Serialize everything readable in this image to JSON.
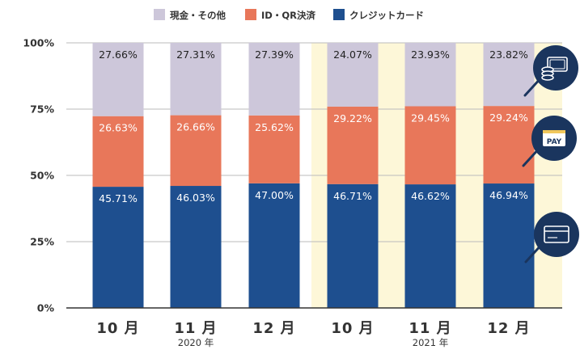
{
  "chart_data": {
    "type": "bar",
    "stacked": true,
    "percent_stacked": true,
    "categories": [
      "10 月",
      "11 月",
      "12 月",
      "10 月",
      "11 月",
      "12 月"
    ],
    "year_labels": [
      {
        "text": "2020 年",
        "category_index": 1
      },
      {
        "text": "2021 年",
        "category_index": 4
      }
    ],
    "highlighted_categories": [
      3,
      4,
      5
    ],
    "series": [
      {
        "name": "クレジットカード",
        "color": "#1e4f8f",
        "values": [
          45.71,
          46.03,
          47.0,
          46.71,
          46.62,
          46.94
        ],
        "labels": [
          "45.71%",
          "46.03%",
          "47.00%",
          "46.71%",
          "46.62%",
          "46.94%"
        ]
      },
      {
        "name": "ID・QR決済",
        "color": "#e8775a",
        "values": [
          26.63,
          26.66,
          25.62,
          29.22,
          29.45,
          29.24
        ],
        "labels": [
          "26.63%",
          "26.66%",
          "25.62%",
          "29.22%",
          "29.45%",
          "29.24%"
        ]
      },
      {
        "name": "現金・その他",
        "color": "#cdc7da",
        "values": [
          27.66,
          27.31,
          27.39,
          24.07,
          23.93,
          23.82
        ],
        "labels": [
          "27.66%",
          "27.31%",
          "27.39%",
          "24.07%",
          "23.93%",
          "23.82%"
        ]
      }
    ],
    "legend_order": [
      2,
      1,
      0
    ],
    "ylim": [
      0,
      100
    ],
    "yticks": [
      0,
      25,
      50,
      75,
      100
    ],
    "ytick_labels": [
      "0%",
      "25%",
      "50%",
      "75%",
      "100%"
    ],
    "grid": true,
    "legend": "top-center",
    "icons": [
      {
        "name": "cash-coins-icon",
        "series_index": 2
      },
      {
        "name": "pay-icon",
        "series_index": 1,
        "text": "PAY"
      },
      {
        "name": "credit-card-icon",
        "series_index": 0
      }
    ],
    "colors": {
      "highlight": "#fdf7d8",
      "grid": "#bbbbbb",
      "axis": "#333333",
      "icon": "#1a355e",
      "text": "#222222"
    }
  }
}
